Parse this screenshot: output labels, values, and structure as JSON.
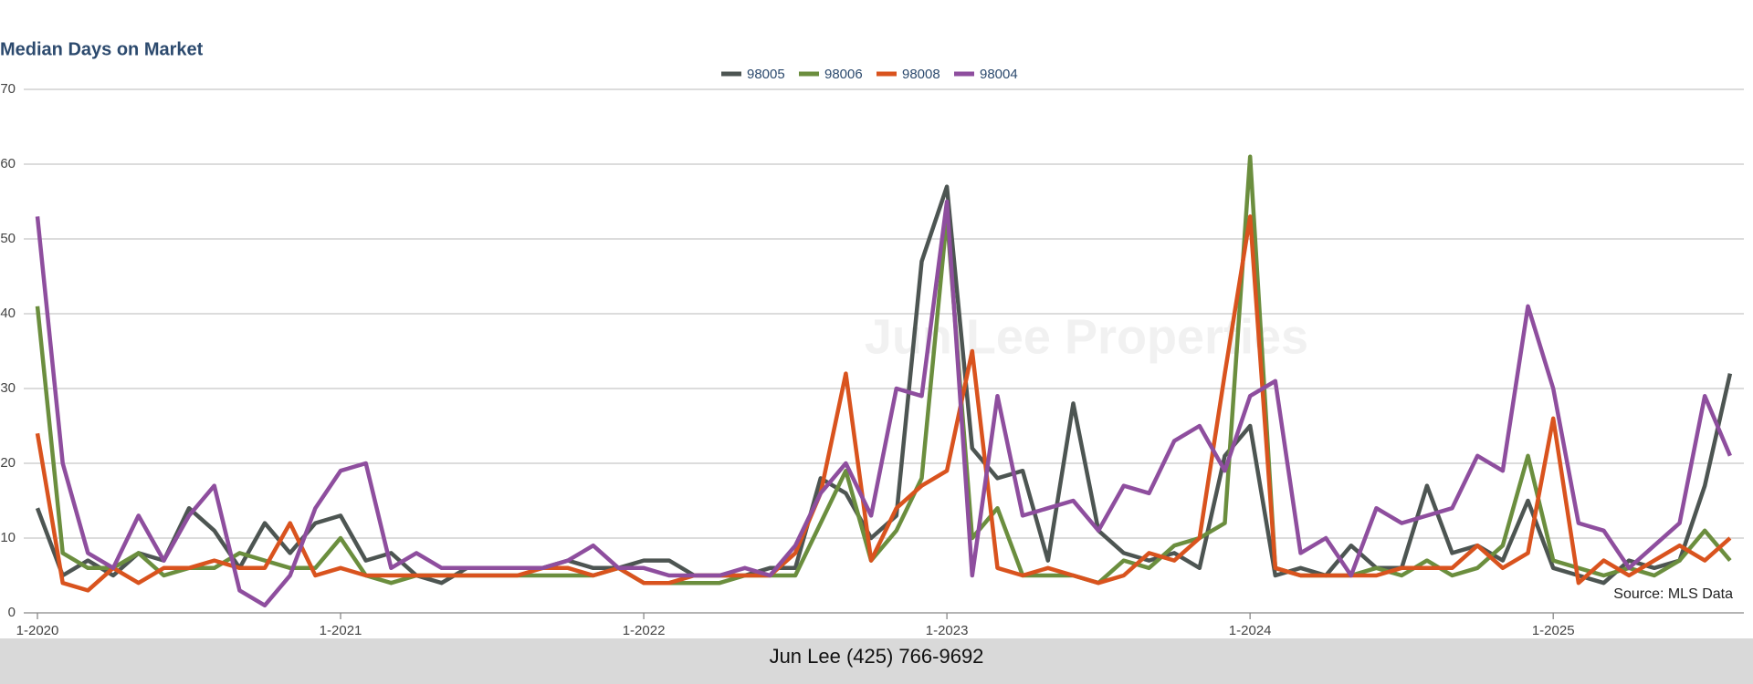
{
  "chart_data": {
    "type": "line",
    "title": "Median Days on Market",
    "categories": [
      "1-2020",
      null,
      null,
      null,
      null,
      null,
      null,
      null,
      null,
      null,
      null,
      null,
      "1-2021",
      null,
      null,
      null,
      null,
      null,
      null,
      null,
      null,
      null,
      null,
      null,
      "1-2022",
      null,
      null,
      null,
      null,
      null,
      null,
      null,
      null,
      null,
      null,
      null,
      "1-2023",
      null,
      null,
      null,
      null,
      null,
      null,
      null,
      null,
      null,
      null,
      null,
      "1-2024",
      null,
      null,
      null,
      null,
      null,
      null,
      null,
      null,
      null,
      null,
      null,
      "1-2025",
      null,
      null,
      null,
      null,
      null,
      null,
      null
    ],
    "series": [
      {
        "name": "98005",
        "color": "#4d5552",
        "values": [
          14,
          5,
          7,
          5,
          8,
          7,
          14,
          11,
          6,
          12,
          8,
          12,
          13,
          7,
          8,
          5,
          4,
          6,
          6,
          6,
          6,
          7,
          6,
          6,
          7,
          7,
          5,
          5,
          5,
          6,
          6,
          18,
          16,
          10,
          13,
          47,
          57,
          22,
          18,
          19,
          7,
          28,
          11,
          8,
          7,
          8,
          6,
          21,
          25,
          5,
          6,
          5,
          9,
          6,
          6,
          17,
          8,
          9,
          7,
          15,
          6,
          5,
          4,
          7,
          6,
          7,
          17,
          32
        ]
      },
      {
        "name": "98006",
        "color": "#6b8e3e",
        "values": [
          41,
          8,
          6,
          6,
          8,
          5,
          6,
          6,
          8,
          7,
          6,
          6,
          10,
          5,
          4,
          5,
          5,
          5,
          5,
          5,
          5,
          5,
          5,
          6,
          4,
          4,
          4,
          4,
          5,
          5,
          5,
          12,
          19,
          7,
          11,
          18,
          53,
          10,
          14,
          5,
          5,
          5,
          4,
          7,
          6,
          9,
          10,
          12,
          61,
          6,
          5,
          5,
          5,
          6,
          5,
          7,
          5,
          6,
          9,
          21,
          7,
          6,
          5,
          6,
          5,
          7,
          11,
          7
        ]
      },
      {
        "name": "98008",
        "color": "#d9531e",
        "values": [
          24,
          4,
          3,
          6,
          4,
          6,
          6,
          7,
          6,
          6,
          12,
          5,
          6,
          5,
          5,
          5,
          5,
          5,
          5,
          5,
          6,
          6,
          5,
          6,
          4,
          4,
          5,
          5,
          5,
          5,
          8,
          16,
          32,
          7,
          14,
          17,
          19,
          35,
          6,
          5,
          6,
          5,
          4,
          5,
          8,
          7,
          10,
          32,
          53,
          6,
          5,
          5,
          5,
          5,
          6,
          6,
          6,
          9,
          6,
          8,
          26,
          4,
          7,
          5,
          7,
          9,
          7,
          10
        ]
      },
      {
        "name": "98004",
        "color": "#8e4e9e",
        "values": [
          53,
          20,
          8,
          6,
          13,
          7,
          13,
          17,
          3,
          1,
          5,
          14,
          19,
          20,
          6,
          8,
          6,
          6,
          6,
          6,
          6,
          7,
          9,
          6,
          6,
          5,
          5,
          5,
          6,
          5,
          9,
          16,
          20,
          13,
          30,
          29,
          55,
          5,
          29,
          13,
          14,
          15,
          11,
          17,
          16,
          23,
          25,
          19,
          29,
          31,
          8,
          10,
          5,
          14,
          12,
          13,
          14,
          21,
          19,
          41,
          30,
          12,
          11,
          6,
          9,
          12,
          29,
          21
        ]
      }
    ],
    "ylim": [
      0,
      70
    ],
    "yticks": [
      0,
      10,
      20,
      30,
      40,
      50,
      60,
      70
    ],
    "grid": true,
    "legend": "top",
    "watermark": "Jun Lee Properties",
    "source": "Source: MLS Data",
    "footer": "Jun Lee (425) 766-9692"
  }
}
